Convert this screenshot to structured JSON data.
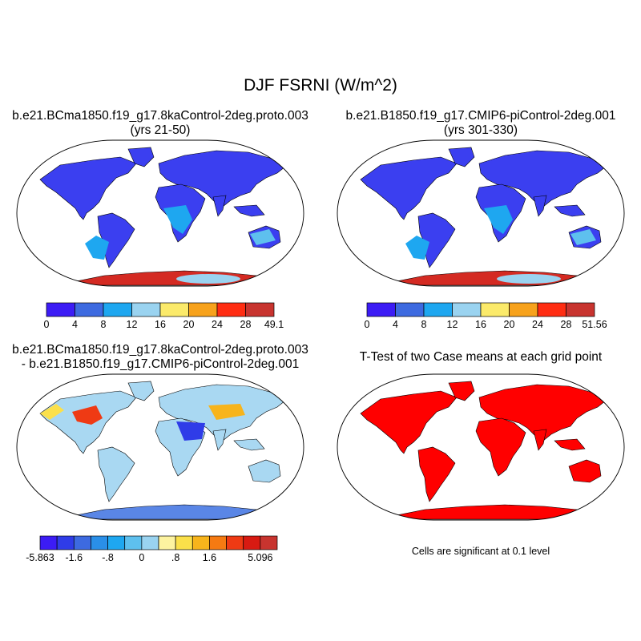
{
  "title": "DJF FSRNI (W/m^2)",
  "panels": [
    {
      "line1": "b.e21.BCma1850.f19_g17.8kaControl-2deg.proto.003",
      "line2": "(yrs 21-50)",
      "type": "abs"
    },
    {
      "line1": "b.e21.B1850.f19_g17.CMIP6-piControl-2deg.001",
      "line2": "(yrs 301-330)",
      "type": "abs"
    },
    {
      "line1": "b.e21.BCma1850.f19_g17.8kaControl-2deg.proto.003",
      "line2": "- b.e21.B1850.f19_g17.CMIP6-piControl-2deg.001",
      "type": "diff"
    },
    {
      "line1": "T-Test of two Case means at each grid point",
      "line2": "",
      "type": "ttest"
    }
  ],
  "colorbars": {
    "abs1": {
      "colors": [
        "#3c1cf5",
        "#3d6ae0",
        "#1ea7f0",
        "#9ad3f0",
        "#fbea6a",
        "#f7a21c",
        "#ff2d12",
        "#c8342f"
      ],
      "labels": [
        "0",
        "4",
        "8",
        "12",
        "16",
        "20",
        "24",
        "28",
        "49.1"
      ]
    },
    "abs2": {
      "colors": [
        "#3c1cf5",
        "#3d6ae0",
        "#1ea7f0",
        "#9ad3f0",
        "#fbea6a",
        "#f7a21c",
        "#ff2d12",
        "#c8342f"
      ],
      "labels": [
        "0",
        "4",
        "8",
        "12",
        "16",
        "20",
        "24",
        "28",
        "51.56"
      ]
    },
    "diff": {
      "colors": [
        "#3c1cf5",
        "#2f3ce8",
        "#3d6ae0",
        "#2a8fe8",
        "#1ea7f0",
        "#5ec0ee",
        "#9ad3f0",
        "#fdf3a0",
        "#fbe04a",
        "#f7b41c",
        "#f57a12",
        "#ef3a14",
        "#d81a12",
        "#c8342f"
      ],
      "labels": [
        "-5.863",
        "",
        "-1.6",
        "",
        "-.8",
        "",
        "0",
        "",
        ".8",
        "",
        "1.6",
        "",
        "",
        "5.096"
      ]
    }
  },
  "ttest_note": "Cells are significant at 0.1 level",
  "colors": {
    "significant": "#ff0000",
    "antarctic_abs": "#d42a22",
    "land_abs": "#3b3ff0"
  }
}
